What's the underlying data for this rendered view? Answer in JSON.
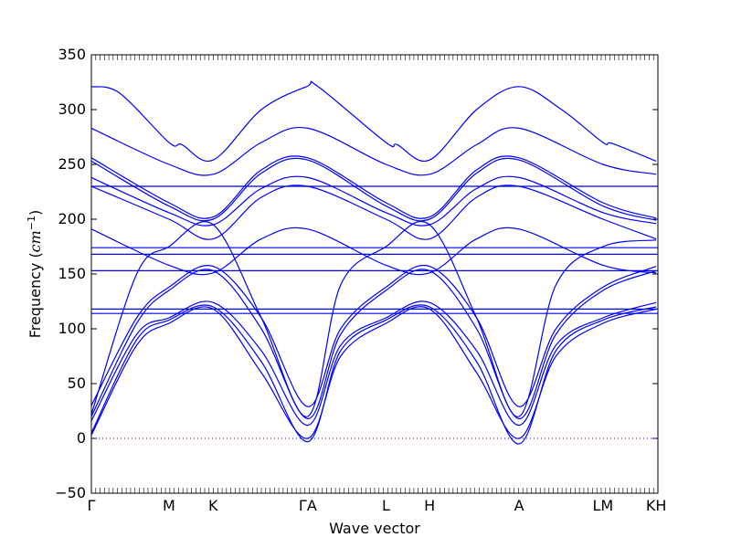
{
  "chart_data": {
    "type": "line",
    "title": "",
    "xlabel": "Wave vector",
    "ylabel": "Frequency (",
    "ylabel_unit": "cm",
    "ylabel_exp": "−1",
    "ylabel_close": ")",
    "ylim": [
      -50,
      350
    ],
    "yticks": [
      -50,
      0,
      50,
      100,
      150,
      200,
      250,
      300,
      350
    ],
    "ytick_labels": [
      "−50",
      "0",
      "50",
      "100",
      "150",
      "200",
      "250",
      "300",
      "350"
    ],
    "xlim": [
      0,
      1
    ],
    "high_symmetry_points": [
      {
        "label": "Γ",
        "x": 0.0
      },
      {
        "label": "M",
        "x": 0.137
      },
      {
        "label": "K",
        "x": 0.215
      },
      {
        "label": "ΓA",
        "x": 0.382
      },
      {
        "label": "L",
        "x": 0.52
      },
      {
        "label": "H",
        "x": 0.597
      },
      {
        "label": "A",
        "x": 0.755
      },
      {
        "label": "LM",
        "x": 0.903
      },
      {
        "label": "KH",
        "x": 0.997
      }
    ],
    "reference_line": {
      "y": 0,
      "style": "dotted"
    },
    "line_color": "#0000ff",
    "series": [
      {
        "values": [
          [
            0.0,
            321
          ],
          [
            0.05,
            315
          ],
          [
            0.137,
            270
          ],
          [
            0.16,
            268
          ],
          [
            0.215,
            254
          ],
          [
            0.3,
            300
          ],
          [
            0.38,
            321
          ],
          [
            0.4,
            321
          ],
          [
            0.52,
            270
          ],
          [
            0.54,
            268
          ],
          [
            0.597,
            254
          ],
          [
            0.68,
            300
          ],
          [
            0.755,
            321
          ],
          [
            0.83,
            300
          ],
          [
            0.903,
            270
          ],
          [
            0.92,
            269
          ],
          [
            0.997,
            253
          ]
        ]
      },
      {
        "values": [
          [
            0.0,
            283
          ],
          [
            0.137,
            250
          ],
          [
            0.215,
            241
          ],
          [
            0.3,
            270
          ],
          [
            0.382,
            283
          ],
          [
            0.52,
            250
          ],
          [
            0.597,
            241
          ],
          [
            0.68,
            268
          ],
          [
            0.755,
            283
          ],
          [
            0.903,
            250
          ],
          [
            0.997,
            241
          ]
        ]
      },
      {
        "values": [
          [
            0.0,
            256
          ],
          [
            0.137,
            215
          ],
          [
            0.215,
            202
          ],
          [
            0.3,
            245
          ],
          [
            0.382,
            256
          ],
          [
            0.52,
            215
          ],
          [
            0.597,
            202
          ],
          [
            0.68,
            245
          ],
          [
            0.755,
            256
          ],
          [
            0.903,
            215
          ],
          [
            0.997,
            201
          ]
        ]
      },
      {
        "values": [
          [
            0.0,
            253
          ],
          [
            0.137,
            212
          ],
          [
            0.215,
            200
          ],
          [
            0.3,
            242
          ],
          [
            0.382,
            254
          ],
          [
            0.52,
            212
          ],
          [
            0.597,
            200
          ],
          [
            0.68,
            242
          ],
          [
            0.755,
            254
          ],
          [
            0.903,
            212
          ],
          [
            0.997,
            199
          ]
        ]
      },
      {
        "values": [
          [
            0.0,
            238
          ],
          [
            0.137,
            206
          ],
          [
            0.215,
            195
          ],
          [
            0.3,
            228
          ],
          [
            0.382,
            238
          ],
          [
            0.52,
            206
          ],
          [
            0.597,
            195
          ],
          [
            0.68,
            228
          ],
          [
            0.755,
            238
          ],
          [
            0.903,
            206
          ],
          [
            0.997,
            196
          ]
        ]
      },
      {
        "values": [
          [
            0.0,
            230
          ],
          [
            0.137,
            200
          ],
          [
            0.215,
            182
          ],
          [
            0.3,
            220
          ],
          [
            0.382,
            230
          ],
          [
            0.52,
            200
          ],
          [
            0.597,
            182
          ],
          [
            0.68,
            220
          ],
          [
            0.755,
            230
          ],
          [
            0.903,
            200
          ],
          [
            0.997,
            182
          ]
        ]
      },
      {
        "values": [
          [
            0.0,
            230
          ],
          [
            0.5,
            230
          ],
          [
            1.0,
            230
          ]
        ]
      },
      {
        "values": [
          [
            0.0,
            191
          ],
          [
            0.137,
            158
          ],
          [
            0.215,
            151
          ],
          [
            0.3,
            182
          ],
          [
            0.382,
            191
          ],
          [
            0.52,
            158
          ],
          [
            0.597,
            151
          ],
          [
            0.68,
            182
          ],
          [
            0.755,
            191
          ],
          [
            0.903,
            158
          ],
          [
            0.997,
            151
          ]
        ]
      },
      {
        "values": [
          [
            0.0,
            174
          ],
          [
            0.5,
            174
          ],
          [
            1.0,
            174
          ]
        ]
      },
      {
        "values": [
          [
            0.0,
            168
          ],
          [
            0.5,
            168
          ],
          [
            1.0,
            168
          ]
        ]
      },
      {
        "values": [
          [
            0.0,
            153
          ],
          [
            0.5,
            153
          ],
          [
            1.0,
            153
          ]
        ]
      },
      {
        "values": [
          [
            0.0,
            118
          ],
          [
            0.5,
            118
          ],
          [
            1.0,
            118
          ]
        ]
      },
      {
        "values": [
          [
            0.0,
            114
          ],
          [
            0.5,
            114
          ],
          [
            1.0,
            114
          ]
        ]
      },
      {
        "values": [
          [
            0.0,
            30
          ],
          [
            0.08,
            110
          ],
          [
            0.137,
            138
          ],
          [
            0.215,
            157
          ],
          [
            0.3,
            110
          ],
          [
            0.382,
            29
          ],
          [
            0.44,
            100
          ],
          [
            0.52,
            138
          ],
          [
            0.597,
            157
          ],
          [
            0.68,
            110
          ],
          [
            0.755,
            29
          ],
          [
            0.82,
            100
          ],
          [
            0.903,
            138
          ],
          [
            0.997,
            157
          ]
        ]
      },
      {
        "values": [
          [
            0.0,
            20
          ],
          [
            0.08,
            105
          ],
          [
            0.137,
            135
          ],
          [
            0.215,
            153
          ],
          [
            0.3,
            100
          ],
          [
            0.382,
            18
          ],
          [
            0.44,
            95
          ],
          [
            0.52,
            135
          ],
          [
            0.597,
            153
          ],
          [
            0.68,
            100
          ],
          [
            0.755,
            18
          ],
          [
            0.82,
            95
          ],
          [
            0.903,
            135
          ],
          [
            0.997,
            153
          ]
        ]
      },
      {
        "values": [
          [
            0.0,
            16
          ],
          [
            0.08,
            95
          ],
          [
            0.137,
            110
          ],
          [
            0.215,
            124
          ],
          [
            0.3,
            80
          ],
          [
            0.382,
            12
          ],
          [
            0.44,
            85
          ],
          [
            0.52,
            110
          ],
          [
            0.597,
            124
          ],
          [
            0.68,
            80
          ],
          [
            0.755,
            12
          ],
          [
            0.82,
            85
          ],
          [
            0.903,
            110
          ],
          [
            0.997,
            124
          ]
        ]
      },
      {
        "values": [
          [
            0.0,
            5
          ],
          [
            0.08,
            90
          ],
          [
            0.137,
            108
          ],
          [
            0.215,
            120
          ],
          [
            0.3,
            70
          ],
          [
            0.382,
            -3
          ],
          [
            0.44,
            80
          ],
          [
            0.52,
            108
          ],
          [
            0.597,
            120
          ],
          [
            0.68,
            70
          ],
          [
            0.755,
            -5
          ],
          [
            0.82,
            80
          ],
          [
            0.903,
            108
          ],
          [
            0.997,
            120
          ]
        ]
      },
      {
        "values": [
          [
            0.0,
            3
          ],
          [
            0.08,
            85
          ],
          [
            0.137,
            105
          ],
          [
            0.215,
            118
          ],
          [
            0.3,
            60
          ],
          [
            0.382,
            0
          ],
          [
            0.44,
            75
          ],
          [
            0.52,
            105
          ],
          [
            0.597,
            118
          ],
          [
            0.68,
            60
          ],
          [
            0.755,
            0
          ],
          [
            0.82,
            75
          ],
          [
            0.903,
            105
          ],
          [
            0.997,
            118
          ]
        ]
      },
      {
        "values": [
          [
            0.0,
            22
          ],
          [
            0.08,
            150
          ],
          [
            0.137,
            175
          ],
          [
            0.215,
            195
          ],
          [
            0.3,
            110
          ],
          [
            0.382,
            20
          ],
          [
            0.44,
            140
          ],
          [
            0.52,
            175
          ],
          [
            0.597,
            195
          ],
          [
            0.68,
            110
          ],
          [
            0.755,
            20
          ],
          [
            0.82,
            140
          ],
          [
            0.903,
            175
          ],
          [
            0.997,
            181
          ]
        ]
      }
    ]
  }
}
